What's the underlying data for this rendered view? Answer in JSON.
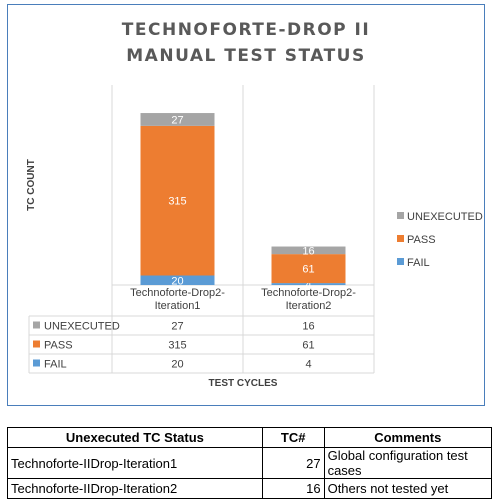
{
  "chart_data": {
    "type": "bar",
    "stacked": true,
    "title_lines": [
      "TECHNOFORTE-DROP II",
      "MANUAL TEST STATUS"
    ],
    "xlabel": "TEST CYCLES",
    "ylabel": "TC COUNT",
    "categories": [
      "Technoforte-Drop2-Iteration1",
      "Technoforte-Drop2-Iteration2"
    ],
    "series": [
      {
        "name": "FAIL",
        "values": [
          20,
          4
        ],
        "color": "#5b9bd5"
      },
      {
        "name": "PASS",
        "values": [
          315,
          61
        ],
        "color": "#ed7d31"
      },
      {
        "name": "UNEXECUTED",
        "values": [
          27,
          16
        ],
        "color": "#a5a5a5"
      }
    ],
    "legend_order": [
      "UNEXECUTED",
      "PASS",
      "FAIL"
    ],
    "legend_position": "right",
    "data_table": true,
    "grid": false
  },
  "status_table": {
    "headers": [
      "Unexecuted TC Status",
      "TC#",
      "Comments"
    ],
    "rows": [
      [
        "Technoforte-IIDrop-Iteration1",
        "27",
        "Global configuration test cases"
      ],
      [
        "Technoforte-IIDrop-Iteration2",
        "16",
        "Others not tested yet"
      ]
    ]
  }
}
